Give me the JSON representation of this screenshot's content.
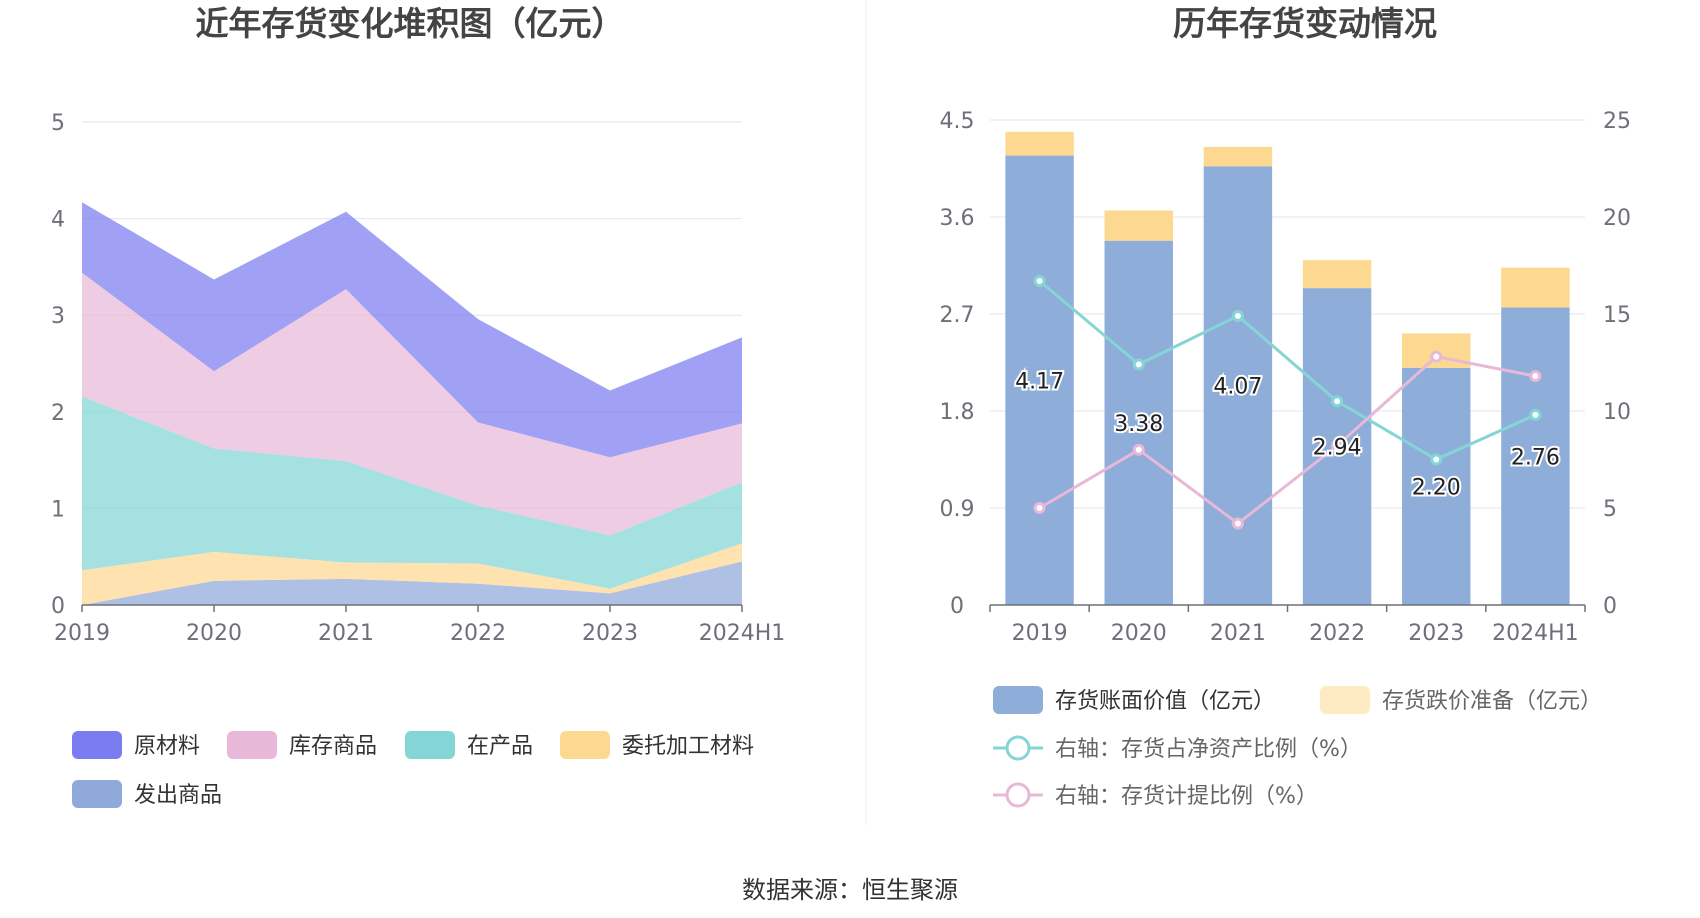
{
  "footer": {
    "source": "数据来源：恒生聚源"
  },
  "chart_data": [
    {
      "type": "area",
      "stacked": true,
      "title": "近年存货变化堆积图（亿元）",
      "categories": [
        "2019",
        "2020",
        "2021",
        "2022",
        "2023",
        "2024H1"
      ],
      "ylim": [
        0,
        5
      ],
      "yticks": [
        "0",
        "1",
        "2",
        "3",
        "4",
        "5"
      ],
      "grid": true,
      "legend_position": "bottom-left",
      "series": [
        {
          "name": "发出商品",
          "color": "#8fa9db",
          "values": [
            0.0,
            0.25,
            0.27,
            0.22,
            0.12,
            0.45
          ]
        },
        {
          "name": "委托加工材料",
          "color": "#fdd891",
          "values": [
            0.36,
            0.3,
            0.17,
            0.21,
            0.05,
            0.19
          ]
        },
        {
          "name": "在产品",
          "color": "#84d6d6",
          "values": [
            1.8,
            1.07,
            1.05,
            0.6,
            0.55,
            0.63
          ]
        },
        {
          "name": "库存商品",
          "color": "#e8b8d8",
          "values": [
            1.28,
            0.8,
            1.78,
            0.86,
            0.81,
            0.61
          ]
        },
        {
          "name": "原材料",
          "color": "#7b7cf0",
          "values": [
            0.73,
            0.95,
            0.8,
            1.07,
            0.69,
            0.89
          ]
        }
      ],
      "legend_order": [
        "原材料",
        "库存商品",
        "在产品",
        "委托加工材料",
        "发出商品"
      ]
    },
    {
      "type": "bar",
      "stacked": true,
      "title": "历年存货变动情况",
      "categories": [
        "2019",
        "2020",
        "2021",
        "2022",
        "2023",
        "2024H1"
      ],
      "ylim": [
        0,
        4.5
      ],
      "yticks": [
        "0",
        "0.9",
        "1.8",
        "2.7",
        "3.6",
        "4.5"
      ],
      "y2lim": [
        0,
        25
      ],
      "y2ticks": [
        "0",
        "5",
        "10",
        "15",
        "20",
        "25"
      ],
      "grid": true,
      "legend_position": "bottom-left",
      "series": [
        {
          "name": "存货账面价值（亿元）",
          "color": "#8fadd9",
          "axis": "left",
          "kind": "bar",
          "values": [
            4.17,
            3.38,
            4.07,
            2.94,
            2.2,
            2.76
          ],
          "labels": [
            "4.17",
            "3.38",
            "4.07",
            "2.94",
            "2.20",
            "2.76"
          ]
        },
        {
          "name": "存货跌价准备（亿元）",
          "color": "#fdd891",
          "axis": "left",
          "kind": "bar",
          "values": [
            0.22,
            0.28,
            0.18,
            0.26,
            0.32,
            0.37
          ]
        },
        {
          "name": "右轴：存货占净资产比例（%）",
          "color": "#84d6d6",
          "axis": "right",
          "kind": "line",
          "values": [
            16.7,
            12.4,
            14.9,
            10.5,
            7.5,
            9.8
          ]
        },
        {
          "name": "右轴：存货计提比例（%）",
          "color": "#e8b8d8",
          "axis": "right",
          "kind": "line",
          "values": [
            5.0,
            8.0,
            4.2,
            8.2,
            12.8,
            11.8
          ]
        }
      ]
    }
  ]
}
